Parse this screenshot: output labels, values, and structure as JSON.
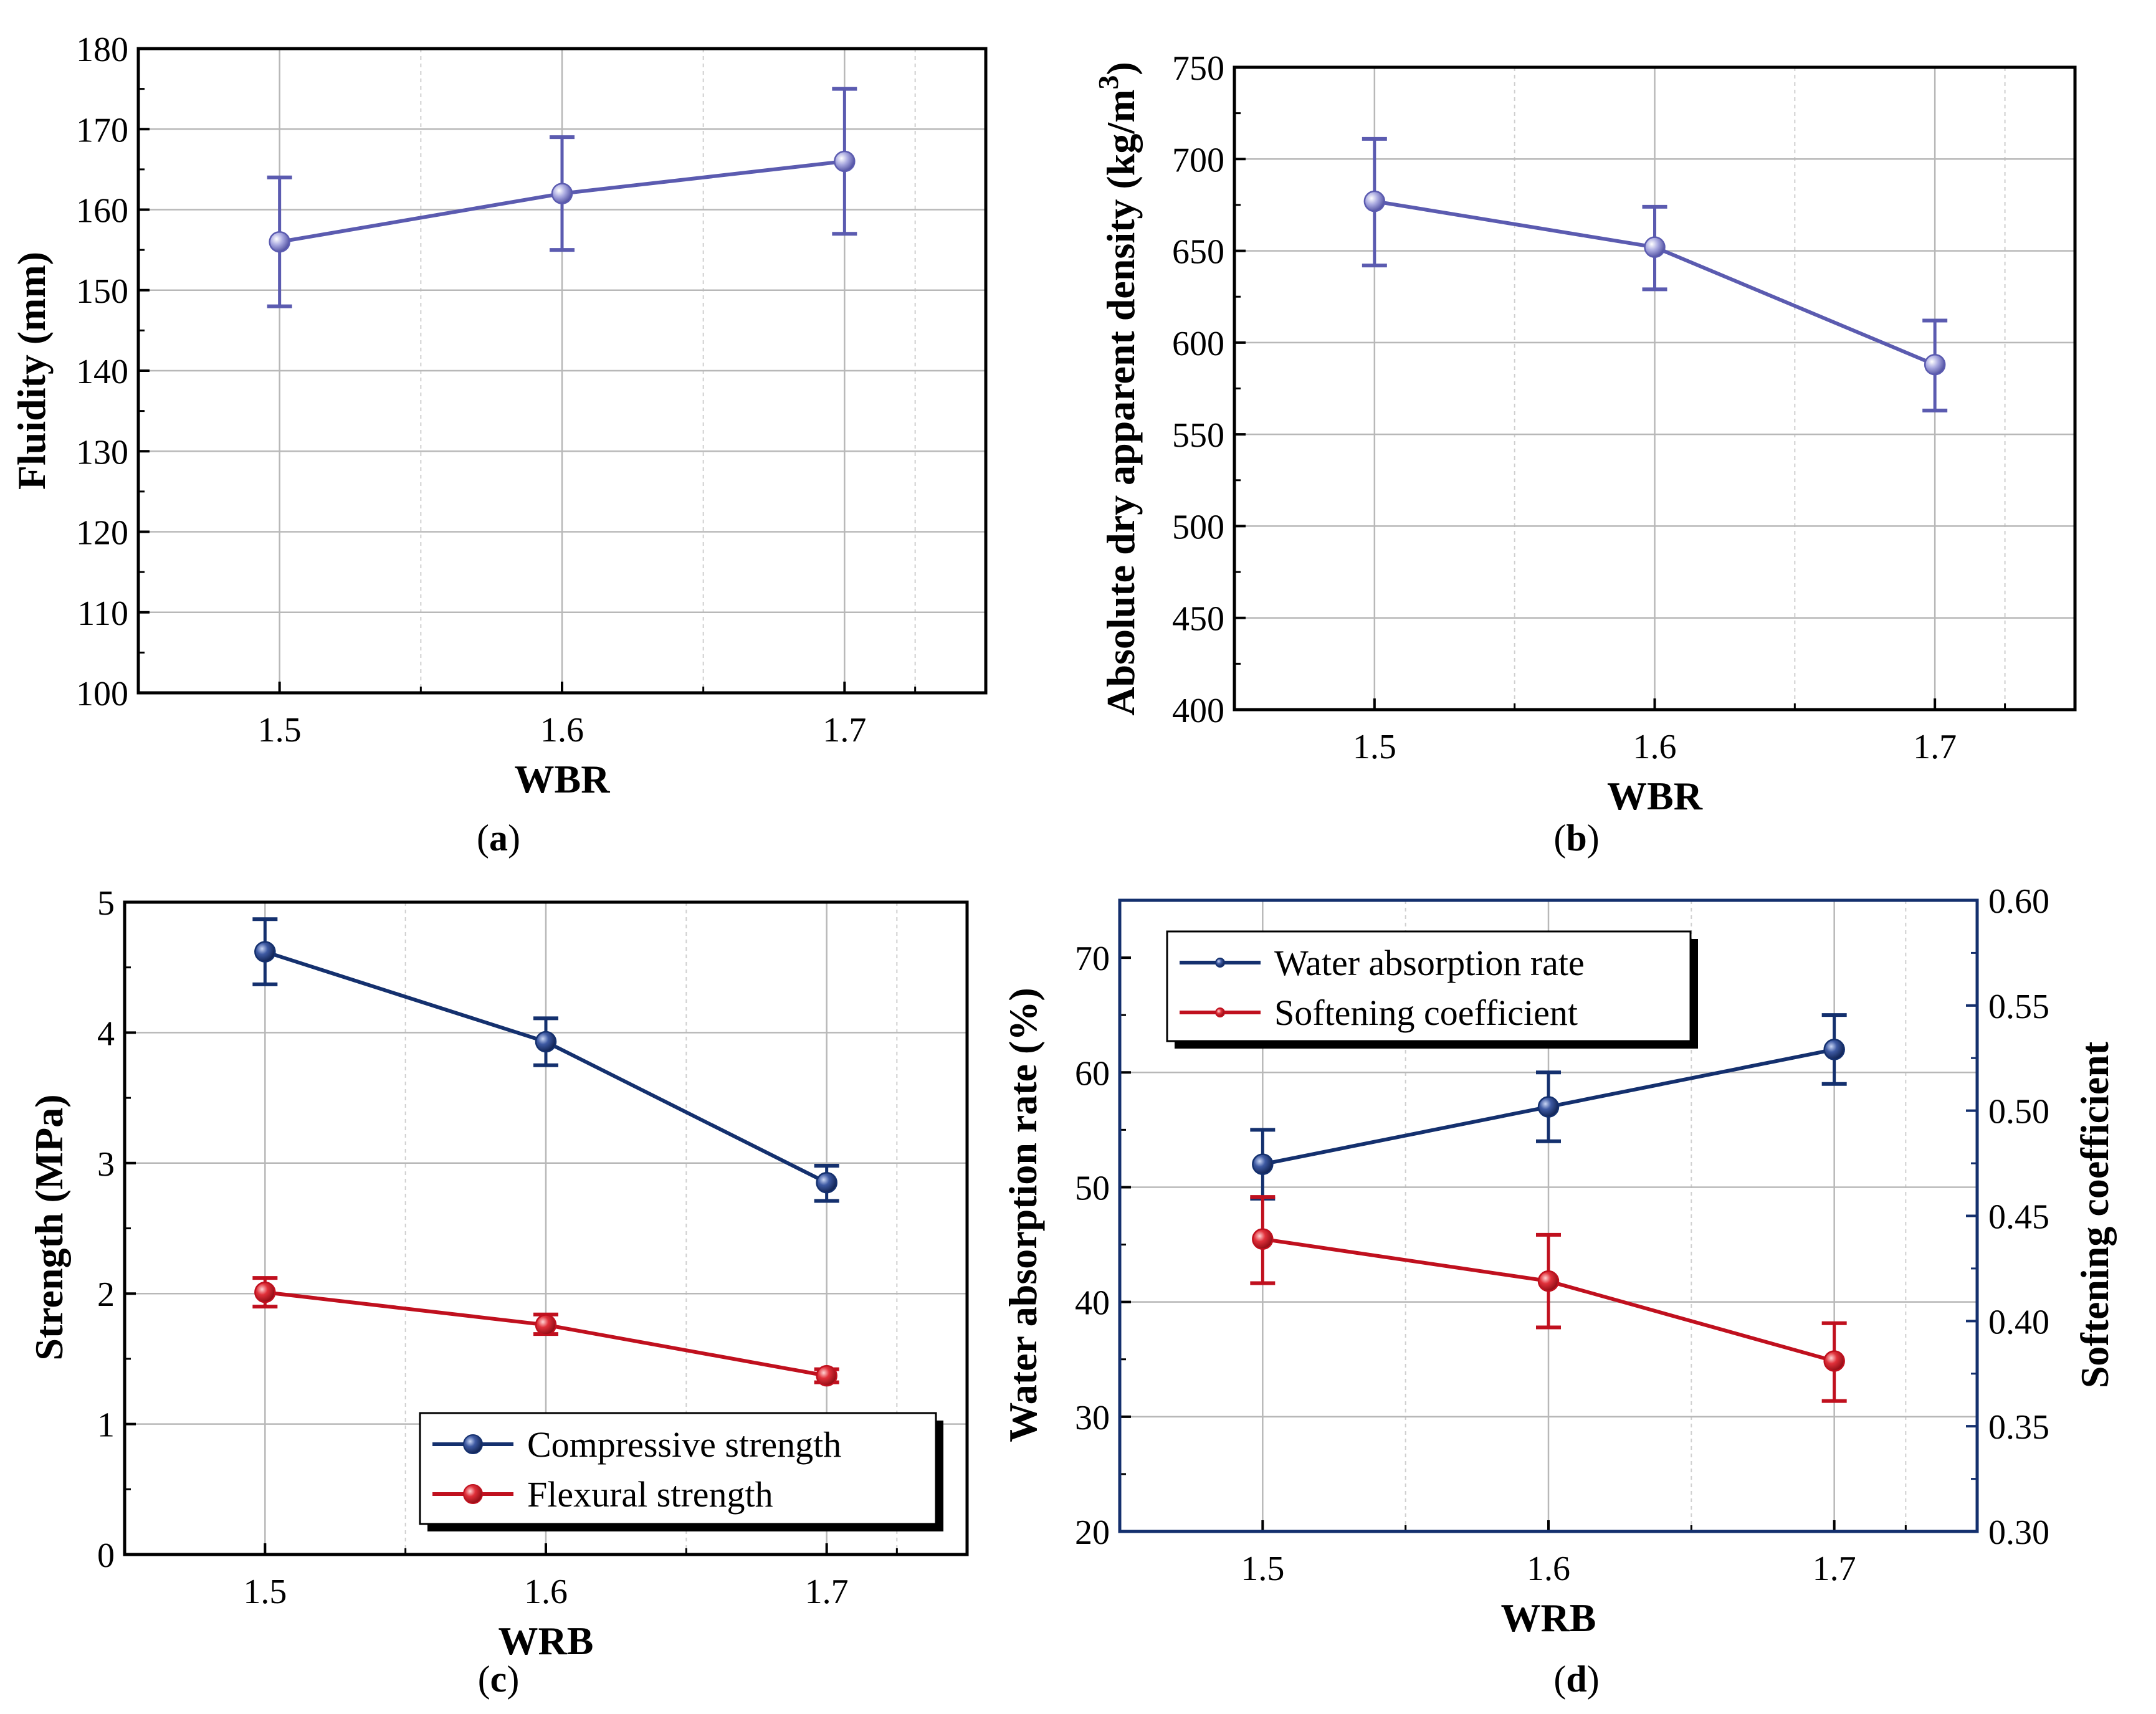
{
  "chart_data": [
    {
      "id": "a",
      "type": "line",
      "caption": "a",
      "xlabel": "WBR",
      "ylabel": "Fluidity (mm)",
      "x": [
        1.5,
        1.6,
        1.7
      ],
      "xlim": [
        1.45,
        1.75
      ],
      "xticks": [
        "1.5",
        "1.6",
        "1.7"
      ],
      "ylim": [
        100,
        180
      ],
      "yticks": [
        "100",
        "110",
        "120",
        "130",
        "140",
        "150",
        "160",
        "170",
        "180"
      ],
      "grid": true,
      "series": [
        {
          "values": [
            156,
            162,
            166
          ],
          "err_low": [
            148,
            155,
            157
          ],
          "err_high": [
            164,
            169,
            175
          ],
          "color": "#5b5bb0"
        }
      ]
    },
    {
      "id": "b",
      "type": "line",
      "caption": "b",
      "xlabel": "WBR",
      "ylabel": "Absolute dry apparent density (kg/m",
      "ylabel_sup": "3",
      "ylabel_end": ")",
      "x": [
        1.5,
        1.6,
        1.7
      ],
      "xlim": [
        1.45,
        1.75
      ],
      "xticks": [
        "1.5",
        "1.6",
        "1.7"
      ],
      "ylim": [
        400,
        750
      ],
      "yticks": [
        "400",
        "450",
        "500",
        "550",
        "600",
        "650",
        "700",
        "750"
      ],
      "grid": true,
      "series": [
        {
          "values": [
            677,
            652,
            588
          ],
          "err_low": [
            642,
            629,
            563
          ],
          "err_high": [
            711,
            674,
            612
          ],
          "color": "#5b5bb0"
        }
      ]
    },
    {
      "id": "c",
      "type": "line",
      "caption": "c",
      "xlabel": "WRB",
      "ylabel": "Strength (MPa)",
      "x": [
        1.5,
        1.6,
        1.7
      ],
      "xlim": [
        1.45,
        1.75
      ],
      "xticks": [
        "1.5",
        "1.6",
        "1.7"
      ],
      "ylim": [
        0,
        5
      ],
      "yticks": [
        "0",
        "1",
        "2",
        "3",
        "4",
        "5"
      ],
      "grid": true,
      "legend_position": "bottom-right",
      "series": [
        {
          "name": "Compressive strength",
          "values": [
            4.62,
            3.93,
            2.85
          ],
          "err_low": [
            4.37,
            3.75,
            2.71
          ],
          "err_high": [
            4.87,
            4.11,
            2.98
          ],
          "color": "#14306e"
        },
        {
          "name": "Flexural strength",
          "values": [
            2.01,
            1.76,
            1.37
          ],
          "err_low": [
            1.9,
            1.69,
            1.32
          ],
          "err_high": [
            2.12,
            1.84,
            1.42
          ],
          "color": "#c0101e"
        }
      ]
    },
    {
      "id": "d",
      "type": "line",
      "caption": "d",
      "xlabel": "WRB",
      "ylabel": "Water absorption rate (%)",
      "y2label": "Softening coefficient",
      "x": [
        1.5,
        1.6,
        1.7
      ],
      "xlim": [
        1.45,
        1.75
      ],
      "xticks": [
        "1.5",
        "1.6",
        "1.7"
      ],
      "ylim": [
        20,
        75
      ],
      "yticks": [
        "20",
        "30",
        "40",
        "50",
        "60",
        "70"
      ],
      "y2lim": [
        0.3,
        0.6
      ],
      "y2ticks": [
        "0.30",
        "0.35",
        "0.40",
        "0.45",
        "0.50",
        "0.55",
        "0.60"
      ],
      "grid": true,
      "legend_position": "top-left",
      "series": [
        {
          "name": "Water absorption rate",
          "axis": "left",
          "values": [
            52,
            57,
            62
          ],
          "err_low": [
            49,
            54,
            59
          ],
          "err_high": [
            55,
            60,
            65
          ],
          "color": "#14306e"
        },
        {
          "name": "Softening coefficient",
          "axis": "right",
          "values": [
            0.439,
            0.419,
            0.381
          ],
          "err_low": [
            0.418,
            0.397,
            0.362
          ],
          "err_high": [
            0.459,
            0.441,
            0.399
          ],
          "color": "#c0101e"
        }
      ]
    }
  ]
}
